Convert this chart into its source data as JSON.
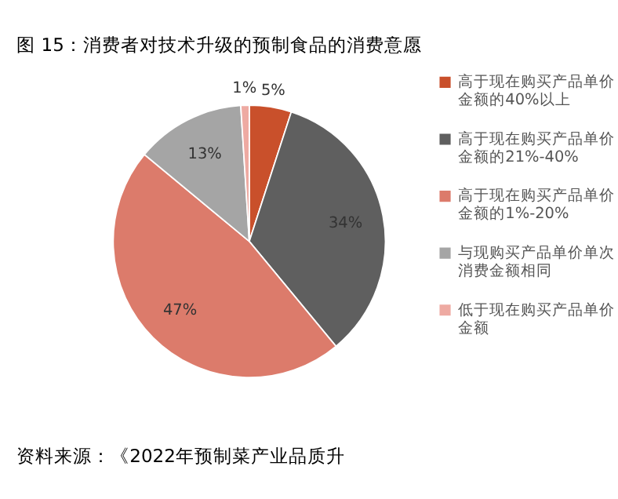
{
  "chart_data": {
    "type": "pie",
    "title": "图 15：消费者对技术升级的预制食品的消费意愿",
    "categories": [
      "高于现在购买产品单价金额的40%以上",
      "高于现在购买产品单价金额的21%-40%",
      "高于现在购买产品单价金额的1%-20%",
      "与现购买产品单价单次消费金额相同",
      "低于现在购买产品单价金额"
    ],
    "values": [
      5,
      34,
      47,
      13,
      1
    ],
    "value_labels": [
      "5%",
      "34%",
      "47%",
      "13%",
      "1%"
    ],
    "colors": [
      "#c9502b",
      "#5f5f5f",
      "#dc7b6b",
      "#a5a5a5",
      "#eeaaa2"
    ],
    "legend": "right",
    "annotations": [
      "资料来源：《2022年预制菜产业品质升"
    ]
  }
}
